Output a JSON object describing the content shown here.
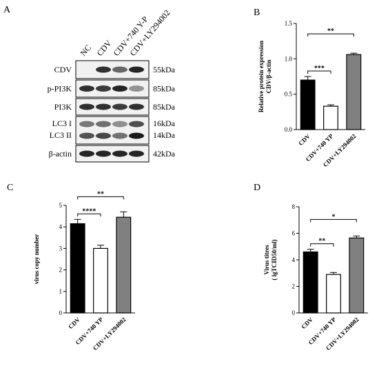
{
  "panels": {
    "A": {
      "letter": "A",
      "lanes": [
        "NC",
        "CDV",
        "CDV+740 Y-P",
        "CDV+LY294002"
      ],
      "blots": [
        {
          "labels": [
            "CDV"
          ],
          "sizes": [
            "55kDa"
          ],
          "intensity": [
            0.0,
            0.85,
            0.6,
            0.9
          ]
        },
        {
          "labels": [
            "p-PI3K"
          ],
          "sizes": [
            "85kDa"
          ],
          "intensity": [
            0.85,
            0.8,
            0.9,
            0.4
          ]
        },
        {
          "labels": [
            "PI3K"
          ],
          "sizes": [
            "85kDa"
          ],
          "intensity": [
            0.85,
            0.85,
            0.8,
            0.85
          ]
        },
        {
          "labels": [
            "LC3 I",
            "LC3 II"
          ],
          "sizes": [
            "16kDa",
            "14kDa"
          ],
          "intensity": [
            0.7,
            0.75,
            0.55,
            0.95
          ]
        },
        {
          "labels": [
            "β-actin"
          ],
          "sizes": [
            "42kDa"
          ],
          "intensity": [
            0.9,
            0.9,
            0.9,
            0.9
          ]
        }
      ]
    }
  },
  "chart_data": [
    {
      "panel": "B",
      "type": "bar",
      "categories": [
        "CDV",
        "CDV+740 YP",
        "CDV+LY294002"
      ],
      "values": [
        0.7,
        0.33,
        1.06
      ],
      "errors": [
        0.05,
        0.02,
        0.02
      ],
      "fills": [
        "#000000",
        "#ffffff",
        "#808080"
      ],
      "ylabel_lines": [
        "Relative protein expression",
        "CDV/β-actin"
      ],
      "ylim": [
        0,
        1.5
      ],
      "yticks": [
        "0.0",
        "0.5",
        "1.0",
        "1.5"
      ],
      "significance": [
        {
          "from": 0,
          "to": 1,
          "label": "***"
        },
        {
          "from": 0,
          "to": 2,
          "label": "**"
        }
      ]
    },
    {
      "panel": "C",
      "type": "bar",
      "categories": [
        "CDV",
        "CDV+740 YP",
        "CDV+LY294002"
      ],
      "values": [
        4.15,
        3.0,
        4.45
      ],
      "errors": [
        0.2,
        0.15,
        0.25
      ],
      "fills": [
        "#000000",
        "#ffffff",
        "#808080"
      ],
      "ylabel_lines": [
        "virus copy number"
      ],
      "ylim": [
        0,
        5
      ],
      "yticks": [
        "0",
        "1",
        "2",
        "3",
        "4",
        "5"
      ],
      "significance": [
        {
          "from": 0,
          "to": 1,
          "label": "****"
        },
        {
          "from": 0,
          "to": 2,
          "label": "**"
        }
      ]
    },
    {
      "panel": "D",
      "type": "bar",
      "categories": [
        "CDV",
        "CDV+740 YP",
        "CDV+LY294002"
      ],
      "values": [
        4.6,
        2.9,
        5.65
      ],
      "errors": [
        0.2,
        0.15,
        0.15
      ],
      "fills": [
        "#000000",
        "#ffffff",
        "#808080"
      ],
      "ylabel_lines": [
        "Virus titres",
        "( lgTCID50/ml)"
      ],
      "ylim": [
        0,
        8
      ],
      "yticks": [
        "0",
        "2",
        "4",
        "6",
        "8"
      ],
      "significance": [
        {
          "from": 0,
          "to": 1,
          "label": "**"
        },
        {
          "from": 0,
          "to": 2,
          "label": "*"
        }
      ]
    }
  ]
}
